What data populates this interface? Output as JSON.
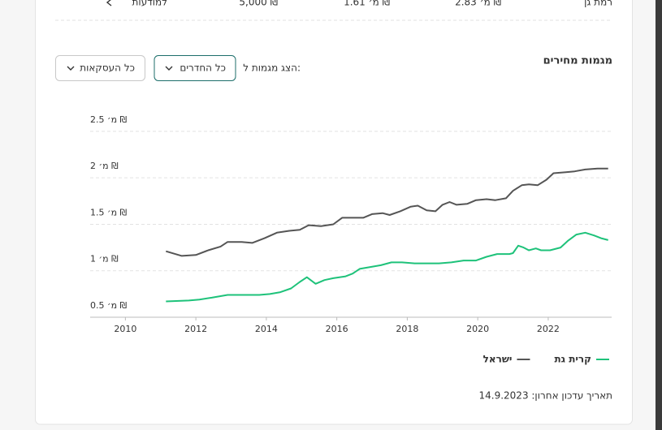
{
  "listing_row": {
    "city": "רמת גן",
    "price": "2.83 מ׳ ₪",
    "price_per_meter": "1.61 מ׳ ₪",
    "rent": "5,000 ₪",
    "link": "למודעות"
  },
  "section_title": "מגמות מחירים",
  "filter_label": "הצג מגמות ל:",
  "rooms_filter": "כל החדרים",
  "deals_filter": "כל העסקאות",
  "chart_data": {
    "type": "line",
    "xlim": [
      2009,
      2023.8
    ],
    "xticks": [
      2010,
      2012,
      2014,
      2016,
      2018,
      2020,
      2022
    ],
    "ylim": [
      0.5,
      2.7
    ],
    "yticks": [
      {
        "value": 0.5,
        "label": "0.5 מ׳ ₪"
      },
      {
        "value": 1,
        "label": "1 מ׳ ₪"
      },
      {
        "value": 1.5,
        "label": "1.5 מ׳ ₪"
      },
      {
        "value": 2,
        "label": "2 מ׳ ₪"
      },
      {
        "value": 2.5,
        "label": "2.5 מ׳ ₪"
      }
    ],
    "grid": true,
    "series": [
      {
        "name": "קרית גת",
        "color": "#1ec27a",
        "x": [
          2011.15,
          2011.8,
          2012.1,
          2012.45,
          2012.9,
          2013.4,
          2013.8,
          2014.1,
          2014.4,
          2014.7,
          2014.95,
          2015.15,
          2015.4,
          2015.65,
          2015.9,
          2016.25,
          2016.45,
          2016.65,
          2016.95,
          2017.25,
          2017.55,
          2017.85,
          2018.2,
          2018.55,
          2018.9,
          2019.25,
          2019.6,
          2019.95,
          2020.25,
          2020.55,
          2020.9,
          2021.0,
          2021.15,
          2021.3,
          2021.45,
          2021.65,
          2021.8,
          2022.05,
          2022.35,
          2022.55,
          2022.8,
          2023.05,
          2023.3,
          2023.5,
          2023.7
        ],
        "values": [
          0.67,
          0.68,
          0.69,
          0.71,
          0.74,
          0.74,
          0.74,
          0.75,
          0.77,
          0.81,
          0.88,
          0.93,
          0.86,
          0.9,
          0.92,
          0.94,
          0.97,
          1.02,
          1.04,
          1.06,
          1.09,
          1.09,
          1.08,
          1.08,
          1.08,
          1.09,
          1.11,
          1.11,
          1.15,
          1.18,
          1.18,
          1.19,
          1.27,
          1.25,
          1.22,
          1.24,
          1.22,
          1.22,
          1.25,
          1.32,
          1.39,
          1.41,
          1.38,
          1.35,
          1.33
        ]
      },
      {
        "name": "ישראל",
        "color": "#555555",
        "x": [
          2011.15,
          2011.6,
          2012.0,
          2012.35,
          2012.7,
          2012.9,
          2013.3,
          2013.6,
          2013.95,
          2014.3,
          2014.65,
          2014.95,
          2015.2,
          2015.55,
          2015.9,
          2016.15,
          2016.5,
          2016.75,
          2017.0,
          2017.3,
          2017.5,
          2017.8,
          2018.1,
          2018.3,
          2018.55,
          2018.8,
          2019.0,
          2019.2,
          2019.4,
          2019.7,
          2019.95,
          2020.25,
          2020.5,
          2020.8,
          2021.0,
          2021.25,
          2021.45,
          2021.7,
          2021.95,
          2022.15,
          2022.5,
          2022.75,
          2023.05,
          2023.4,
          2023.7
        ],
        "values": [
          1.21,
          1.16,
          1.17,
          1.22,
          1.26,
          1.31,
          1.31,
          1.3,
          1.35,
          1.41,
          1.43,
          1.44,
          1.49,
          1.48,
          1.5,
          1.57,
          1.57,
          1.57,
          1.61,
          1.62,
          1.6,
          1.64,
          1.69,
          1.7,
          1.65,
          1.64,
          1.71,
          1.74,
          1.71,
          1.72,
          1.76,
          1.77,
          1.76,
          1.78,
          1.86,
          1.92,
          1.93,
          1.92,
          1.98,
          2.05,
          2.06,
          2.07,
          2.09,
          2.1,
          2.1
        ]
      }
    ]
  },
  "last_updated": "תאריך עדכון אחרון: 14.9.2023"
}
